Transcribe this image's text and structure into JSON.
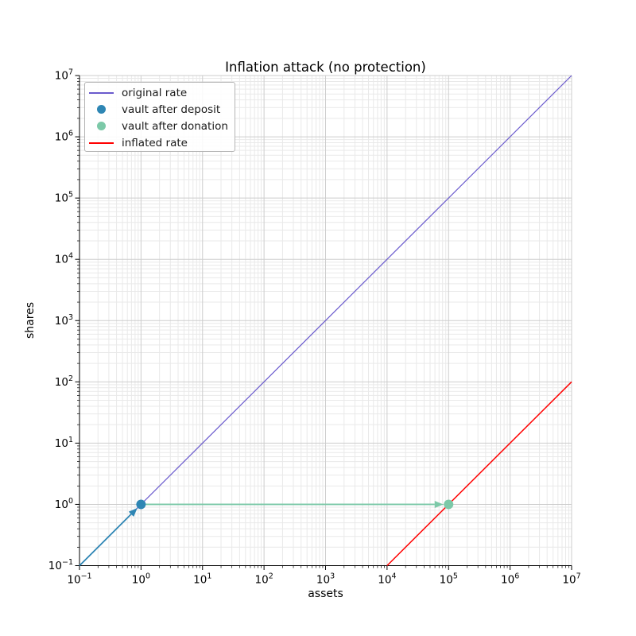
{
  "chart_data": {
    "type": "line",
    "title": "Inflation attack (no protection)",
    "xlabel": "assets",
    "ylabel": "shares",
    "xscale": "log",
    "yscale": "log",
    "xlim": [
      0.1,
      10000000
    ],
    "ylim": [
      0.1,
      10000000
    ],
    "x_tick_exponents": [
      -1,
      0,
      1,
      2,
      3,
      4,
      5,
      6,
      7
    ],
    "y_tick_exponents": [
      -1,
      0,
      1,
      2,
      3,
      4,
      5,
      6,
      7
    ],
    "grid": "major+minor",
    "legend_position": "upper left",
    "series": [
      {
        "name": "original rate",
        "kind": "line",
        "color": "#6a5acd",
        "linewidth": 1.2,
        "points": [
          [
            0.1,
            0.1
          ],
          [
            10000000,
            10000000
          ]
        ]
      },
      {
        "name": "vault after deposit",
        "kind": "scatter",
        "color": "#2e86b4",
        "marker_radius": 6,
        "points": [
          [
            1,
            1
          ]
        ]
      },
      {
        "name": "vault after donation",
        "kind": "scatter",
        "color": "#7cc9a8",
        "marker_radius": 6,
        "points": [
          [
            100000,
            1
          ]
        ]
      },
      {
        "name": "inflated rate",
        "kind": "line",
        "color": "#ff0000",
        "linewidth": 1.5,
        "points": [
          [
            10000,
            0.1
          ],
          [
            10000000,
            100
          ]
        ]
      }
    ],
    "annotations": [
      {
        "kind": "arrow",
        "color": "#2e86b4",
        "from": [
          0.1,
          0.1
        ],
        "to": [
          1,
          1
        ]
      },
      {
        "kind": "arrow",
        "color": "#7cc9a8",
        "from": [
          1,
          1
        ],
        "to": [
          100000,
          1
        ]
      }
    ]
  }
}
